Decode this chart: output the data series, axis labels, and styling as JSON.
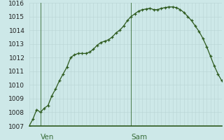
{
  "background_color": "#cde8e8",
  "grid_color": "#b8d4d4",
  "line_color": "#2d5a1e",
  "marker_color": "#2d5a1e",
  "spine_color": "#2d5a1e",
  "vline_color": "#4a7a4a",
  "y_values": [
    1007.0,
    1007.5,
    1008.2,
    1008.0,
    1008.3,
    1008.5,
    1009.2,
    1009.7,
    1010.3,
    1010.8,
    1011.3,
    1012.0,
    1012.2,
    1012.3,
    1012.3,
    1012.3,
    1012.4,
    1012.6,
    1012.9,
    1013.1,
    1013.2,
    1013.3,
    1013.5,
    1013.8,
    1014.0,
    1014.3,
    1014.7,
    1015.0,
    1015.2,
    1015.4,
    1015.5,
    1015.55,
    1015.6,
    1015.5,
    1015.5,
    1015.6,
    1015.65,
    1015.7,
    1015.7,
    1015.65,
    1015.5,
    1015.3,
    1015.0,
    1014.7,
    1014.3,
    1013.9,
    1013.4,
    1012.8,
    1012.1,
    1011.4,
    1010.8,
    1010.3
  ],
  "ven_tick": 3,
  "sam_tick": 27,
  "ylim_min": 1007,
  "ylim_max": 1016,
  "yticks": [
    1007,
    1008,
    1009,
    1010,
    1011,
    1012,
    1013,
    1014,
    1015,
    1016
  ],
  "tick_label_fontsize": 6.5,
  "day_label_fontsize": 7.5,
  "day_label_color": "#3a6e3a"
}
